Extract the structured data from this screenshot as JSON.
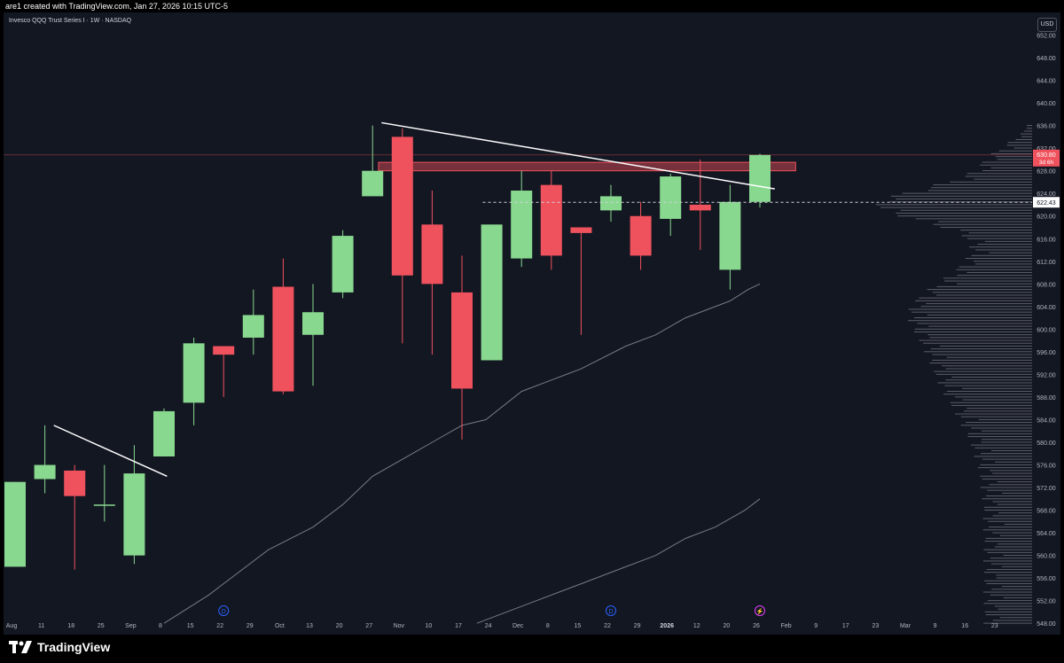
{
  "header": {
    "caption": "are1 created with TradingView.com, Jan 27, 2026 10:15 UTC-5"
  },
  "symbol_line": "Invesco QQQ Trust Series I · 1W · NASDAQ",
  "currency": "USD",
  "footer": {
    "brand": "TradingView"
  },
  "colors": {
    "up": "#89d88f",
    "down": "#f0525d",
    "background": "#131722",
    "text": "#b2b5be"
  },
  "chart_data": {
    "type": "candlestick",
    "interval": "1W",
    "ylim": [
      546,
      656
    ],
    "y_ticks": [
      548,
      552,
      556,
      560,
      564,
      568,
      572,
      576,
      580,
      584,
      588,
      592,
      596,
      600,
      604,
      608,
      612,
      616,
      620,
      624,
      628,
      632,
      636,
      640,
      644,
      648,
      652
    ],
    "x_labels": [
      "Aug",
      "11",
      "18",
      "25",
      "Sep",
      "8",
      "15",
      "22",
      "29",
      "Oct",
      "13",
      "20",
      "27",
      "Nov",
      "10",
      "17",
      "24",
      "Dec",
      "8",
      "15",
      "22",
      "29",
      "2026",
      "12",
      "20",
      "26",
      "Feb",
      "9",
      "17",
      "23",
      "Mar",
      "9",
      "16",
      "23"
    ],
    "candles": [
      {
        "o": 558.0,
        "h": 573.0,
        "l": 558.0,
        "c": 573.0
      },
      {
        "o": 573.5,
        "h": 583.0,
        "l": 571.0,
        "c": 576.0
      },
      {
        "o": 575.0,
        "h": 576.0,
        "l": 557.5,
        "c": 570.5
      },
      {
        "o": 569.0,
        "h": 576.0,
        "l": 566.0,
        "c": 569.0
      },
      {
        "o": 560.0,
        "h": 579.5,
        "l": 558.5,
        "c": 574.5
      },
      {
        "o": 577.5,
        "h": 586.0,
        "l": 577.5,
        "c": 585.5
      },
      {
        "o": 587.0,
        "h": 598.5,
        "l": 583.0,
        "c": 597.5
      },
      {
        "o": 597.0,
        "h": 597.0,
        "l": 588.0,
        "c": 595.5
      },
      {
        "o": 598.5,
        "h": 607.0,
        "l": 595.5,
        "c": 602.5
      },
      {
        "o": 607.5,
        "h": 612.5,
        "l": 588.5,
        "c": 589.0
      },
      {
        "o": 599.0,
        "h": 608.0,
        "l": 590.0,
        "c": 603.0
      },
      {
        "o": 606.5,
        "h": 617.5,
        "l": 605.5,
        "c": 616.5
      },
      {
        "o": 623.5,
        "h": 636.0,
        "l": 623.5,
        "c": 628.0
      },
      {
        "o": 634.0,
        "h": 635.5,
        "l": 597.5,
        "c": 609.5
      },
      {
        "o": 618.5,
        "h": 624.5,
        "l": 595.5,
        "c": 608.0
      },
      {
        "o": 606.5,
        "h": 613.0,
        "l": 580.5,
        "c": 589.5
      },
      {
        "o": 594.5,
        "h": 618.5,
        "l": 594.5,
        "c": 618.5
      },
      {
        "o": 612.5,
        "h": 628.0,
        "l": 611.0,
        "c": 624.5
      },
      {
        "o": 625.5,
        "h": 628.0,
        "l": 610.5,
        "c": 613.0
      },
      {
        "o": 618.0,
        "h": 618.0,
        "l": 599.0,
        "c": 617.0
      },
      {
        "o": 621.0,
        "h": 625.5,
        "l": 619.0,
        "c": 623.5
      },
      {
        "o": 620.0,
        "h": 622.5,
        "l": 610.5,
        "c": 613.0
      },
      {
        "o": 619.5,
        "h": 627.5,
        "l": 616.5,
        "c": 627.0
      },
      {
        "o": 622.0,
        "h": 630.0,
        "l": 614.0,
        "c": 621.0
      },
      {
        "o": 610.5,
        "h": 625.5,
        "l": 607.0,
        "c": 622.5
      },
      {
        "o": 622.5,
        "h": 631.0,
        "l": 621.5,
        "c": 630.8
      }
    ],
    "last_price": "630.80",
    "countdown": "3d 6h",
    "reference_price": "622.43",
    "resistance_zone": [
      628.0,
      629.5
    ],
    "trendlines": [
      {
        "x1": 1.3,
        "y1": 583.0,
        "x2": 5.1,
        "y2": 574.0
      },
      {
        "x1": 12.3,
        "y1": 636.5,
        "x2": 25.5,
        "y2": 624.8
      }
    ],
    "moving_averages": [
      {
        "points": [
          [
            5.0,
            548
          ],
          [
            6.5,
            553
          ],
          [
            8.5,
            561
          ],
          [
            10.0,
            565
          ],
          [
            11.0,
            569
          ],
          [
            12.0,
            574
          ],
          [
            13.0,
            577
          ],
          [
            14.0,
            580
          ],
          [
            15.0,
            583
          ],
          [
            15.8,
            584
          ],
          [
            17.0,
            589
          ],
          [
            18.0,
            591
          ],
          [
            19.0,
            593
          ],
          [
            20.5,
            597
          ],
          [
            21.5,
            599
          ],
          [
            22.5,
            602
          ],
          [
            24.0,
            605
          ],
          [
            24.6,
            607
          ],
          [
            25.0,
            608
          ]
        ]
      },
      {
        "points": [
          [
            15.5,
            548
          ],
          [
            17.5,
            552
          ],
          [
            19.0,
            555
          ],
          [
            20.5,
            558
          ],
          [
            21.5,
            560
          ],
          [
            22.5,
            563
          ],
          [
            23.5,
            565
          ],
          [
            24.5,
            568
          ],
          [
            25.0,
            570
          ]
        ]
      }
    ],
    "volume_profile_note": "",
    "event_markers": [
      "D",
      "D",
      "⚡"
    ]
  }
}
